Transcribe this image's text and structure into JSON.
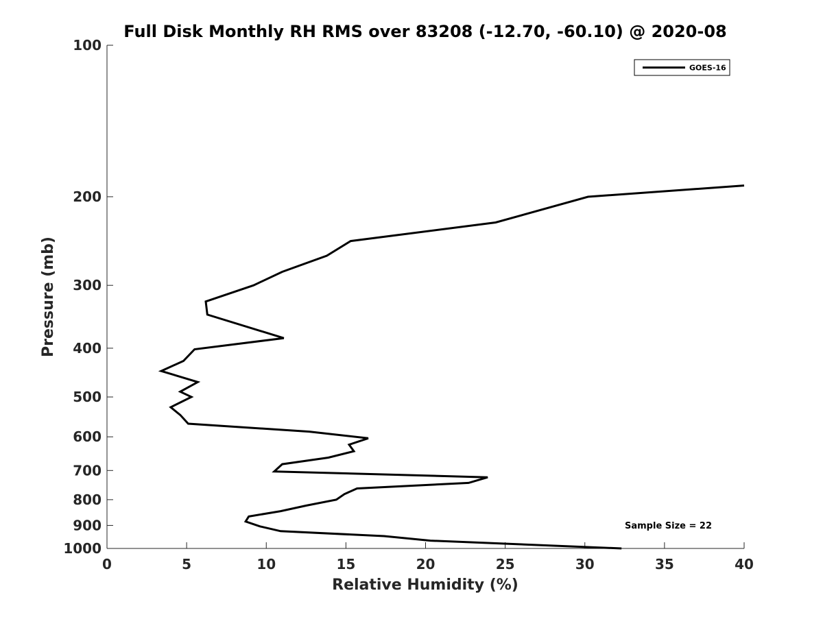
{
  "chart_data": {
    "type": "line",
    "title": "Full Disk Monthly RH RMS over 83208 (-12.70, -60.10) @ 2020-08",
    "xlabel": "Relative Humidity (%)",
    "ylabel": "Pressure (mb)",
    "xlim": [
      0,
      40
    ],
    "ylim": [
      100,
      1000
    ],
    "y_scale": "log",
    "y_direction": "reversed",
    "grid": false,
    "legend_position": "top-right",
    "x_ticks": [
      0,
      5,
      10,
      15,
      20,
      25,
      30,
      35,
      40
    ],
    "x_tick_labels": [
      "0",
      "5",
      "10",
      "15",
      "20",
      "25",
      "30",
      "35",
      "40"
    ],
    "y_ticks": [
      100,
      200,
      300,
      400,
      500,
      600,
      700,
      800,
      900,
      1000
    ],
    "y_tick_labels": [
      "100",
      "200",
      "300",
      "400",
      "500",
      "600",
      "700",
      "800",
      "900",
      "1000"
    ],
    "series": [
      {
        "name": "GOES-16",
        "color": "#000000",
        "points": [
          {
            "x": 40.0,
            "p": 190
          },
          {
            "x": 30.2,
            "p": 200
          },
          {
            "x": 24.4,
            "p": 225
          },
          {
            "x": 15.3,
            "p": 245
          },
          {
            "x": 13.8,
            "p": 262
          },
          {
            "x": 11.0,
            "p": 282
          },
          {
            "x": 9.2,
            "p": 300
          },
          {
            "x": 6.2,
            "p": 323
          },
          {
            "x": 6.3,
            "p": 343
          },
          {
            "x": 11.1,
            "p": 382
          },
          {
            "x": 5.5,
            "p": 402
          },
          {
            "x": 4.8,
            "p": 424
          },
          {
            "x": 3.4,
            "p": 444
          },
          {
            "x": 5.7,
            "p": 467
          },
          {
            "x": 4.6,
            "p": 488
          },
          {
            "x": 5.3,
            "p": 500
          },
          {
            "x": 4.0,
            "p": 524
          },
          {
            "x": 4.6,
            "p": 543
          },
          {
            "x": 5.1,
            "p": 565
          },
          {
            "x": 12.7,
            "p": 586
          },
          {
            "x": 16.4,
            "p": 604
          },
          {
            "x": 15.2,
            "p": 622
          },
          {
            "x": 15.5,
            "p": 641
          },
          {
            "x": 13.9,
            "p": 660
          },
          {
            "x": 11.0,
            "p": 680
          },
          {
            "x": 10.5,
            "p": 703
          },
          {
            "x": 23.9,
            "p": 722
          },
          {
            "x": 22.7,
            "p": 741
          },
          {
            "x": 15.7,
            "p": 760
          },
          {
            "x": 14.9,
            "p": 780
          },
          {
            "x": 14.4,
            "p": 800
          },
          {
            "x": 12.5,
            "p": 822
          },
          {
            "x": 10.9,
            "p": 843
          },
          {
            "x": 8.9,
            "p": 864
          },
          {
            "x": 8.7,
            "p": 884
          },
          {
            "x": 9.6,
            "p": 904
          },
          {
            "x": 10.9,
            "p": 924
          },
          {
            "x": 17.4,
            "p": 945
          },
          {
            "x": 20.3,
            "p": 965
          },
          {
            "x": 32.3,
            "p": 1000
          }
        ]
      }
    ],
    "annotations": [
      "Sample Size = 22"
    ]
  }
}
